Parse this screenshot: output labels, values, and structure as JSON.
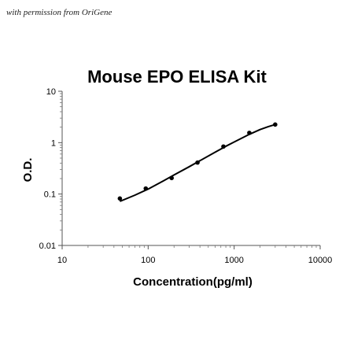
{
  "header": {
    "permission_note": "with permission from OriGene"
  },
  "chart_data": {
    "type": "scatter",
    "title": "Mouse EPO ELISA Kit",
    "xlabel": "Concentration(pg/ml)",
    "ylabel": "O.D.",
    "xscale": "log",
    "yscale": "log",
    "xlim": [
      10,
      10000
    ],
    "ylim": [
      0.01,
      10
    ],
    "x_ticks": [
      10,
      100,
      1000,
      10000
    ],
    "x_tick_labels": [
      "10",
      "100",
      "1000",
      "10000"
    ],
    "y_ticks": [
      0.01,
      0.1,
      1,
      10
    ],
    "y_tick_labels": [
      "0.01",
      "0.1",
      "1",
      "10"
    ],
    "grid": false,
    "legend": "none",
    "series": [
      {
        "x": [
          46.9,
          93.8,
          187.5,
          375,
          750,
          1500,
          3000
        ],
        "y": [
          0.082,
          0.128,
          0.205,
          0.41,
          0.84,
          1.55,
          2.25
        ],
        "marker_color": "#000000"
      }
    ],
    "fit_curve": {
      "x": [
        46.9,
        70,
        100,
        150,
        200,
        300,
        400,
        600,
        800,
        1000,
        1500,
        2000,
        2500,
        3000
      ],
      "y": [
        0.072,
        0.095,
        0.125,
        0.18,
        0.235,
        0.34,
        0.445,
        0.65,
        0.85,
        1.03,
        1.45,
        1.8,
        2.05,
        2.25
      ],
      "color": "#000000"
    }
  }
}
